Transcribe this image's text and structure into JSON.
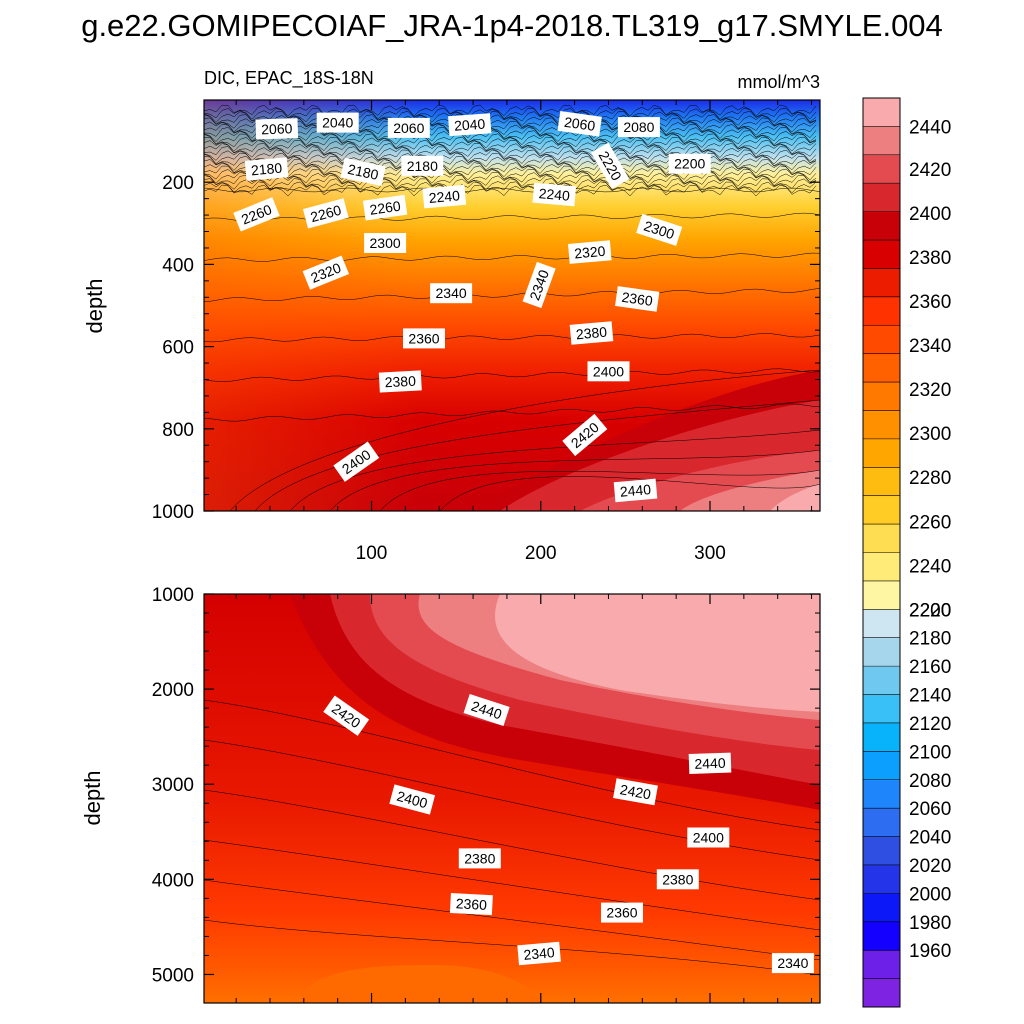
{
  "title": "g.e22.GOMIPECOIAF_JRA-1p4-2018.TL319_g17.SMYLE.004",
  "chart_data": {
    "type": "contour",
    "variable_label": "DIC, EPAC_18S-18N",
    "units": "mmol/m^3",
    "ylabel": "depth",
    "xlim": [
      1,
      365
    ],
    "upper_panel": {
      "ylim": [
        0,
        1000
      ],
      "yticks": [
        200,
        400,
        600,
        800,
        1000
      ],
      "xticks": [
        100,
        200,
        300
      ],
      "contour_labels": [
        {
          "text": "2060",
          "x": 44,
          "y": 70,
          "rot": -2
        },
        {
          "text": "2040",
          "x": 80,
          "y": 55,
          "rot": 0
        },
        {
          "text": "2060",
          "x": 122,
          "y": 68,
          "rot": 0
        },
        {
          "text": "2040",
          "x": 158,
          "y": 60,
          "rot": -4
        },
        {
          "text": "2060",
          "x": 223,
          "y": 58,
          "rot": 8
        },
        {
          "text": "2080",
          "x": 258,
          "y": 66,
          "rot": 0
        },
        {
          "text": "2180",
          "x": 38,
          "y": 168,
          "rot": -5
        },
        {
          "text": "2180",
          "x": 95,
          "y": 175,
          "rot": 12
        },
        {
          "text": "2180",
          "x": 130,
          "y": 160,
          "rot": 0
        },
        {
          "text": "2220",
          "x": 241,
          "y": 160,
          "rot": 60
        },
        {
          "text": "2200",
          "x": 288,
          "y": 155,
          "rot": 0
        },
        {
          "text": "2260",
          "x": 32,
          "y": 278,
          "rot": -22
        },
        {
          "text": "2260",
          "x": 73,
          "y": 276,
          "rot": -15
        },
        {
          "text": "2260",
          "x": 108,
          "y": 262,
          "rot": -8
        },
        {
          "text": "2240",
          "x": 143,
          "y": 235,
          "rot": -5
        },
        {
          "text": "2240",
          "x": 208,
          "y": 230,
          "rot": 5
        },
        {
          "text": "2300",
          "x": 270,
          "y": 316,
          "rot": 18
        },
        {
          "text": "2300",
          "x": 108,
          "y": 348,
          "rot": 0
        },
        {
          "text": "2320",
          "x": 73,
          "y": 420,
          "rot": -22
        },
        {
          "text": "2320",
          "x": 229,
          "y": 370,
          "rot": -5
        },
        {
          "text": "2340",
          "x": 147,
          "y": 470,
          "rot": 0
        },
        {
          "text": "2340",
          "x": 199,
          "y": 450,
          "rot": -70
        },
        {
          "text": "2360",
          "x": 257,
          "y": 484,
          "rot": 8
        },
        {
          "text": "2360",
          "x": 131,
          "y": 580,
          "rot": 0
        },
        {
          "text": "2380",
          "x": 230,
          "y": 567,
          "rot": -5
        },
        {
          "text": "2380",
          "x": 117,
          "y": 685,
          "rot": -3
        },
        {
          "text": "2400",
          "x": 240,
          "y": 660,
          "rot": 0
        },
        {
          "text": "2420",
          "x": 226,
          "y": 815,
          "rot": -40
        },
        {
          "text": "2400",
          "x": 91,
          "y": 880,
          "rot": -35
        },
        {
          "text": "2440",
          "x": 256,
          "y": 950,
          "rot": -5
        }
      ]
    },
    "lower_panel": {
      "ylim": [
        1000,
        5300
      ],
      "yticks": [
        1000,
        2000,
        3000,
        4000,
        5000
      ],
      "contour_labels": [
        {
          "text": "2420",
          "x": 85,
          "y": 2280,
          "rot": 35
        },
        {
          "text": "2440",
          "x": 168,
          "y": 2220,
          "rot": 18
        },
        {
          "text": "2440",
          "x": 300,
          "y": 2780,
          "rot": -2
        },
        {
          "text": "2400",
          "x": 124,
          "y": 3160,
          "rot": 15
        },
        {
          "text": "2420",
          "x": 256,
          "y": 3080,
          "rot": 10
        },
        {
          "text": "2400",
          "x": 299,
          "y": 3560,
          "rot": 0
        },
        {
          "text": "2380",
          "x": 164,
          "y": 3780,
          "rot": 0
        },
        {
          "text": "2380",
          "x": 281,
          "y": 4000,
          "rot": 0
        },
        {
          "text": "2360",
          "x": 159,
          "y": 4260,
          "rot": 3
        },
        {
          "text": "2360",
          "x": 248,
          "y": 4350,
          "rot": 0
        },
        {
          "text": "2340",
          "x": 199,
          "y": 4780,
          "rot": -5
        },
        {
          "text": "2340",
          "x": 349,
          "y": 4880,
          "rot": 0
        }
      ]
    },
    "colorbar": {
      "levels": [
        1960,
        1980,
        2000,
        2020,
        2040,
        2060,
        2080,
        2100,
        2120,
        2140,
        2160,
        2180,
        2200,
        2220,
        2240,
        2260,
        2280,
        2300,
        2320,
        2340,
        2360,
        2380,
        2400,
        2420,
        2440
      ],
      "colors": [
        "#7e23e2",
        "#6c20e8",
        "#1400ff",
        "#0c18f8",
        "#2434e8",
        "#2f4fe2",
        "#2d6df2",
        "#1e85fa",
        "#0c9ffe",
        "#08b3fc",
        "#39c0f7",
        "#6fc8f0",
        "#a6d6ec",
        "#cde6f2",
        "#fff6a4",
        "#ffeb78",
        "#ffdd53",
        "#ffcc26",
        "#ffbc10",
        "#ffa600",
        "#ff9000",
        "#ff7800",
        "#ff6000",
        "#ff4a00",
        "#ff3200",
        "#ec1c00",
        "#d80000",
        "#c80008",
        "#d8282e",
        "#e44b50",
        "#ee7f80",
        "#f8aaad"
      ]
    }
  }
}
